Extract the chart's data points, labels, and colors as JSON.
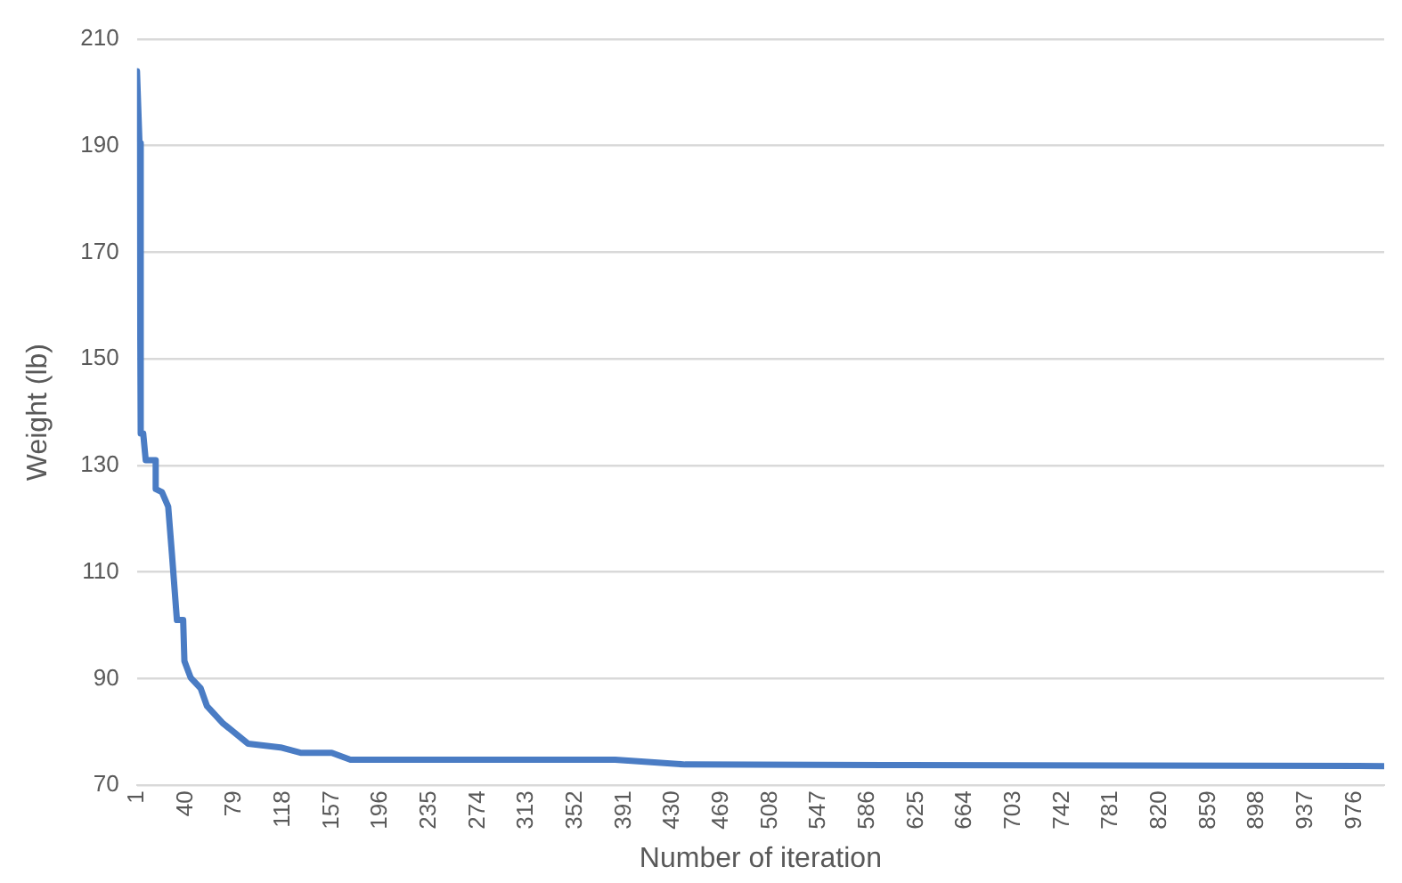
{
  "chart_data": {
    "type": "line",
    "xlabel": "Number of iteration",
    "ylabel": "Weight (lb)",
    "xlim": [
      1,
      1000
    ],
    "xticks": [
      1,
      40,
      79,
      118,
      157,
      196,
      235,
      274,
      313,
      352,
      391,
      430,
      469,
      508,
      547,
      586,
      625,
      664,
      703,
      742,
      781,
      820,
      859,
      898,
      937,
      976
    ],
    "ylim": [
      70,
      210
    ],
    "yticks": [
      70,
      90,
      110,
      130,
      150,
      170,
      190,
      210
    ],
    "grid": "y",
    "legend": false,
    "marker": "none",
    "line_style": "solid",
    "series": [
      {
        "color": "#4a7cc4",
        "x": [
          1,
          3,
          4,
          6,
          8,
          16,
          16,
          21,
          26,
          29,
          33,
          38,
          39,
          44,
          52,
          57,
          70,
          90,
          116,
          132,
          157,
          172,
          260,
          384,
          440,
          600,
          800,
          1000
        ],
        "values": [
          204,
          190.5,
          136,
          136,
          131,
          131,
          125.6,
          125,
          122.3,
          113.4,
          101,
          101,
          93.3,
          90.2,
          88.2,
          84.9,
          81.6,
          77.8,
          77.1,
          76.1,
          76.1,
          74.8,
          74.8,
          74.8,
          73.9,
          73.8,
          73.7,
          73.6
        ]
      }
    ]
  }
}
